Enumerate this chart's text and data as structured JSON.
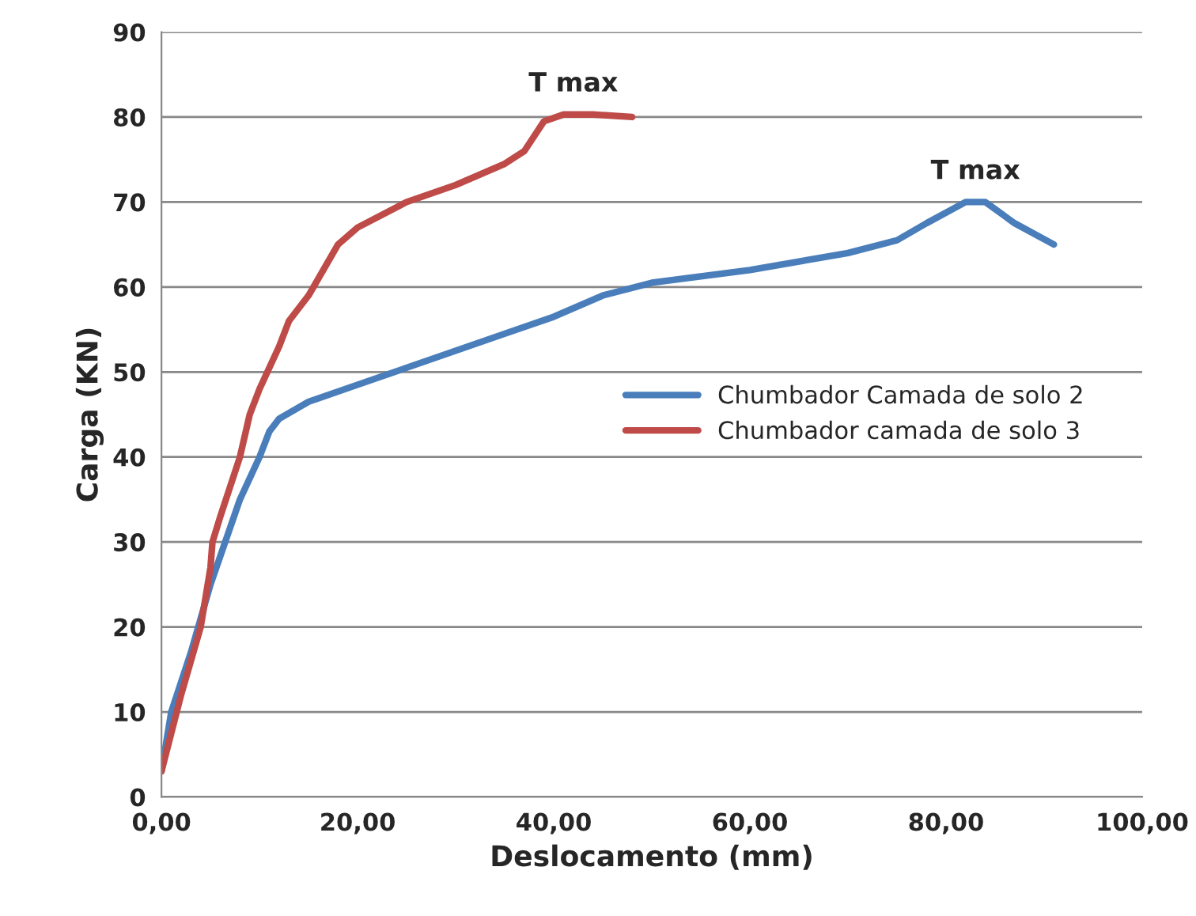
{
  "chart_data": {
    "type": "line",
    "xlabel": "Deslocamento (mm)",
    "ylabel": "Carga (KN)",
    "xlim": [
      0,
      100
    ],
    "ylim": [
      0,
      90
    ],
    "xticks": [
      {
        "value": 0,
        "label": "0,00"
      },
      {
        "value": 20,
        "label": "20,00"
      },
      {
        "value": 40,
        "label": "40,00"
      },
      {
        "value": 60,
        "label": "60,00"
      },
      {
        "value": 80,
        "label": "80,00"
      },
      {
        "value": 100,
        "label": "100,00"
      }
    ],
    "yticks": [
      0,
      10,
      20,
      30,
      40,
      50,
      60,
      70,
      80,
      90
    ],
    "grid": "y",
    "legend": "center right",
    "marker": "none",
    "line_style": "solid",
    "series": [
      {
        "name": "Chumbador Camada de solo 2",
        "color": "#4a7ebb",
        "x": [
          0,
          1,
          3,
          5,
          8,
          10,
          11,
          12,
          15,
          20,
          25,
          30,
          35,
          40,
          45,
          50,
          60,
          70,
          75,
          78,
          82,
          84,
          87,
          91
        ],
        "values": [
          3,
          10,
          17,
          25,
          35,
          40,
          43,
          44.5,
          46.5,
          48.5,
          50.5,
          52.5,
          54.5,
          56.5,
          59,
          60.5,
          62,
          64,
          65.5,
          67.5,
          70,
          70,
          67.5,
          65
        ]
      },
      {
        "name": "Chumbador camada de solo 3",
        "color": "#be4b48",
        "x": [
          0,
          2,
          4,
          5,
          5.2,
          6,
          8,
          9,
          10,
          12,
          13,
          15,
          16,
          18,
          20,
          25,
          30,
          35,
          37,
          39,
          41,
          44,
          48
        ],
        "values": [
          3,
          12,
          20,
          27,
          30,
          33,
          40,
          45,
          48,
          53,
          56,
          59,
          61,
          65,
          67,
          70,
          72,
          74.5,
          76,
          79.5,
          80.3,
          80.3,
          80
        ]
      }
    ],
    "annotations": [
      {
        "text": "T max",
        "x": 42,
        "y": 80.3
      },
      {
        "text": "T max",
        "x": 83,
        "y": 70
      }
    ]
  }
}
